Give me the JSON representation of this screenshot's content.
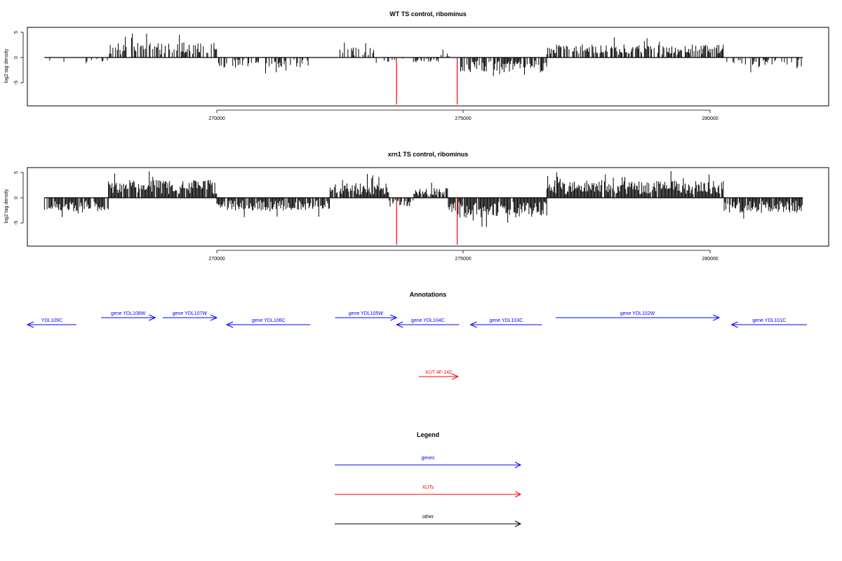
{
  "panels": [
    {
      "title": "WT TS control, ribominus",
      "ylabel": "log2 tag density",
      "yticks": [
        "-5",
        "0",
        "5"
      ],
      "xticks": [
        "270000",
        "275000",
        "280000"
      ]
    },
    {
      "title": "xrn1 TS control, ribominus",
      "ylabel": "log2 tag density",
      "yticks": [
        "-5",
        "0",
        "5"
      ],
      "xticks": [
        "270000",
        "275000",
        "280000"
      ]
    }
  ],
  "annotations_title": "Annotations",
  "legend_title": "Legend",
  "legend": [
    {
      "label": "genes",
      "color": "#0000ff"
    },
    {
      "label": "XUTs",
      "color": "#ff0000"
    },
    {
      "label": "other",
      "color": "#000000"
    }
  ],
  "colors": {
    "gene": "#0000ff",
    "xut": "#ff0000",
    "signal": "#000000",
    "highlight": "#ff0000"
  },
  "chart_data": [
    {
      "type": "bar",
      "title": "WT TS control, ribominus",
      "ylabel": "log2 tag density",
      "xlim": [
        266100,
        282200
      ],
      "ylim": [
        -9.5,
        6
      ],
      "grid": false,
      "highlight_bars": [
        {
          "x": 273650,
          "y": -9.3
        },
        {
          "x": 274880,
          "y": -9.3
        }
      ],
      "segments": [
        {
          "x0": 266500,
          "x1": 267800,
          "sign": -1,
          "density": 0.2,
          "amp": 1.0
        },
        {
          "x0": 267800,
          "x1": 270000,
          "sign": 1,
          "density": 0.55,
          "amp": 3.0
        },
        {
          "x0": 270000,
          "x1": 271900,
          "sign": -1,
          "density": 0.4,
          "amp": 2.0
        },
        {
          "x0": 272500,
          "x1": 273200,
          "sign": 1,
          "density": 0.5,
          "amp": 2.0
        },
        {
          "x0": 273200,
          "x1": 274500,
          "sign": -1,
          "density": 0.2,
          "amp": 1.0
        },
        {
          "x0": 274500,
          "x1": 274950,
          "sign": 1,
          "density": 0.3,
          "amp": 1.0
        },
        {
          "x0": 274950,
          "x1": 276700,
          "sign": -1,
          "density": 0.8,
          "amp": 3.0
        },
        {
          "x0": 276700,
          "x1": 280300,
          "sign": 1,
          "density": 0.7,
          "amp": 2.6
        },
        {
          "x0": 280300,
          "x1": 281900,
          "sign": -1,
          "density": 0.35,
          "amp": 2.0
        }
      ]
    },
    {
      "type": "bar",
      "title": "xrn1 TS control, ribominus",
      "ylabel": "log2 tag density",
      "xlim": [
        266100,
        282200
      ],
      "ylim": [
        -9.5,
        6
      ],
      "grid": false,
      "highlight_bars": [
        {
          "x": 273650,
          "y": -9.3
        },
        {
          "x": 274880,
          "y": -9.3
        }
      ],
      "segments": [
        {
          "x0": 266500,
          "x1": 267800,
          "sign": -1,
          "density": 0.9,
          "amp": 3.0
        },
        {
          "x0": 267800,
          "x1": 270000,
          "sign": 1,
          "density": 0.95,
          "amp": 3.5
        },
        {
          "x0": 270000,
          "x1": 272300,
          "sign": -1,
          "density": 0.9,
          "amp": 2.5
        },
        {
          "x0": 272300,
          "x1": 273500,
          "sign": 1,
          "density": 0.95,
          "amp": 3.0
        },
        {
          "x0": 273500,
          "x1": 274000,
          "sign": -1,
          "density": 0.6,
          "amp": 2.0
        },
        {
          "x0": 274000,
          "x1": 274700,
          "sign": 1,
          "density": 0.7,
          "amp": 2.0
        },
        {
          "x0": 274700,
          "x1": 276700,
          "sign": -1,
          "density": 0.95,
          "amp": 4.0
        },
        {
          "x0": 276700,
          "x1": 280300,
          "sign": 1,
          "density": 0.95,
          "amp": 3.5
        },
        {
          "x0": 280300,
          "x1": 281900,
          "sign": -1,
          "density": 0.9,
          "amp": 3.0
        }
      ]
    }
  ],
  "features": [
    {
      "label": "YDL109C",
      "start": 266100,
      "end": 267150,
      "strand": "-",
      "kind": "gene",
      "row": 1
    },
    {
      "label": "gene YDL108W",
      "start": 267650,
      "end": 268750,
      "strand": "+",
      "kind": "gene",
      "row": 0
    },
    {
      "label": "gene YDL107W",
      "start": 268900,
      "end": 270000,
      "strand": "+",
      "kind": "gene",
      "row": 0
    },
    {
      "label": "gene YDL106C",
      "start": 270200,
      "end": 271900,
      "strand": "-",
      "kind": "gene",
      "row": 1
    },
    {
      "label": "gene YDL105W",
      "start": 272400,
      "end": 273650,
      "strand": "+",
      "kind": "gene",
      "row": 0
    },
    {
      "label": "gene YDL104C",
      "start": 273650,
      "end": 274920,
      "strand": "-",
      "kind": "gene",
      "row": 1
    },
    {
      "label": "gene YDL103C",
      "start": 275150,
      "end": 276600,
      "strand": "-",
      "kind": "gene",
      "row": 1
    },
    {
      "label": "gene YDL102W",
      "start": 276880,
      "end": 280200,
      "strand": "+",
      "kind": "gene",
      "row": 0
    },
    {
      "label": "gene YDL101C",
      "start": 280450,
      "end": 282000,
      "strand": "-",
      "kind": "gene",
      "row": 1
    },
    {
      "label": "XUT 4F-142",
      "start": 274100,
      "end": 274900,
      "strand": "+",
      "kind": "xut",
      "row": 2
    }
  ]
}
